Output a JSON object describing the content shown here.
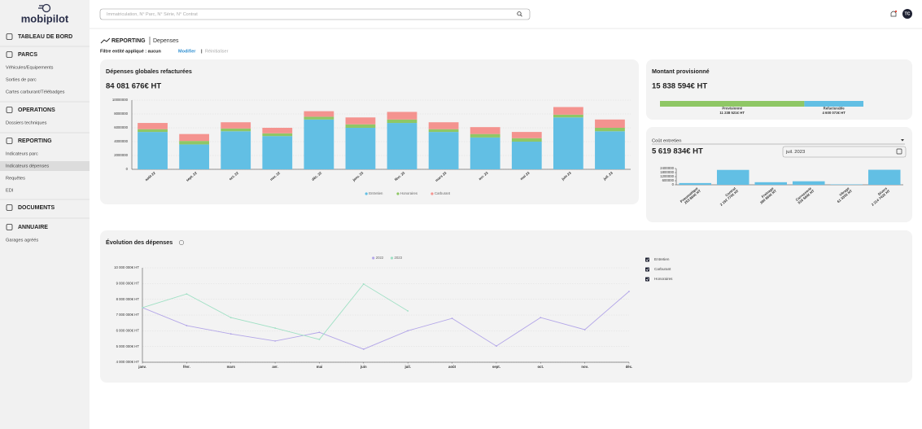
{
  "logo": "mobipilot",
  "search_placeholder": "Immatriculation, N° Parc, N° Série, N° Contrat",
  "avatar": "TC",
  "nav": [
    {
      "label": "TABLEAU DE BORD",
      "items": []
    },
    {
      "label": "PARCS",
      "items": [
        "Véhicules/Equipements",
        "Sorties de parc",
        "Cartes carburant/Télébadges"
      ]
    },
    {
      "label": "OPERATIONS",
      "items": [
        "Dossiers techniques"
      ]
    },
    {
      "label": "REPORTING",
      "items": [
        "Indicateurs parc",
        "Indicateurs dépenses",
        "Requêtes",
        "EDI"
      ]
    },
    {
      "label": "DOCUMENTS",
      "items": []
    },
    {
      "label": "ANNUAIRE",
      "items": [
        "Garages agréés"
      ]
    }
  ],
  "breadcrumb": {
    "section": "REPORTING",
    "page": "Depenses"
  },
  "filter": {
    "text": "Filtre entité appliqué : aucun",
    "modify": "Modifier",
    "separator": "|",
    "reset": "Réinitialiser"
  },
  "global_card": {
    "title": "Dépenses globales refacturées",
    "total": "84 081 676€ HT"
  },
  "provision_card": {
    "title": "Montant provisionné",
    "total": "15 838 594€ HT",
    "segments": [
      {
        "name": "Provisionné",
        "value": 11238521,
        "label": "11 238 521€ HT",
        "color": "#8fc765"
      },
      {
        "name": "Refacturable",
        "value": 4600073,
        "label": "4 600 073€ HT",
        "color": "#62bfe4"
      }
    ]
  },
  "cost_card": {
    "select": "Coût entretien",
    "total": "5 619 834€ HT",
    "date": "juil. 2023"
  },
  "evolution_card": {
    "title": "Évolution des dépenses",
    "filters": [
      "Entretien",
      "Carburant",
      "Honoraires"
    ]
  },
  "chart_data": [
    {
      "type": "bar",
      "stacked": true,
      "grid": true,
      "categories": [
        "août 22",
        "sept. 22",
        "oct. 22",
        "nov. 22",
        "déc. 22",
        "janv. 23",
        "févr. 23",
        "mars 23",
        "avr. 23",
        "mai 23",
        "juin 23",
        "juil. 23"
      ],
      "series": [
        {
          "name": "Entretien",
          "color": "#62bfe4",
          "values": [
            5400000,
            3600000,
            5500000,
            4800000,
            7200000,
            6000000,
            6700000,
            5400000,
            4600000,
            4000000,
            7500000,
            5500000
          ]
        },
        {
          "name": "Honoraires",
          "color": "#8fc765",
          "values": [
            400000,
            500000,
            400000,
            400000,
            400000,
            500000,
            500000,
            400000,
            500000,
            500000,
            400000,
            500000
          ]
        },
        {
          "name": "Carburant",
          "color": "#f4938f",
          "values": [
            900000,
            1000000,
            900000,
            800000,
            800000,
            1000000,
            1100000,
            1000000,
            1000000,
            900000,
            1100000,
            1200000
          ]
        }
      ],
      "ylim": [
        0,
        10000000
      ],
      "yticks": [
        0,
        2000000,
        4000000,
        6000000,
        8000000,
        10000000
      ]
    },
    {
      "type": "bar",
      "grid": false,
      "color": "#62bfe4",
      "categories": [
        "Pneumatique",
        "Contrat",
        "Freinage",
        "Carrosserie",
        "Vitrage",
        "Divers"
      ],
      "values": [
        253864,
        2192770,
        380864,
        516564,
        61030,
        2214742
      ],
      "value_labels": [
        "253 864€ HT",
        "2 192 770€ HT",
        "380 864€ HT",
        "516 564€ HT",
        "61 030€ HT",
        "2 214 742€ HT"
      ],
      "ylim": [
        0,
        2400000
      ],
      "yticks": [
        0,
        600000,
        1200000,
        1800000,
        2400000
      ]
    },
    {
      "type": "line",
      "grid": true,
      "categories": [
        "janv.",
        "févr.",
        "mars",
        "avr.",
        "mai",
        "juin",
        "juil.",
        "août",
        "sept.",
        "oct.",
        "nov.",
        "déc."
      ],
      "series": [
        {
          "name": "2022",
          "color": "#b3a6e8",
          "values": [
            7470000,
            6330000,
            5800000,
            5350000,
            5900000,
            4830000,
            6000000,
            6790000,
            5030000,
            6840000,
            6070000,
            8500000
          ]
        },
        {
          "name": "2023",
          "color": "#9fe0c4",
          "values": [
            7470000,
            8340000,
            6840000,
            6170000,
            5450000,
            8970000,
            7260000,
            null,
            null,
            null,
            null,
            null
          ]
        }
      ],
      "ylim": [
        4000000,
        10000000
      ],
      "yticks": [
        {
          "value": 4000000,
          "label": "4 000 000€ HT"
        },
        {
          "value": 5000000,
          "label": "5 000 000€ HT"
        },
        {
          "value": 6000000,
          "label": "6 000 000€ HT"
        },
        {
          "value": 7000000,
          "label": "7 000 000€ HT"
        },
        {
          "value": 8000000,
          "label": "8 000 000€ HT"
        },
        {
          "value": 9000000,
          "label": "9 000 000€ HT"
        },
        {
          "value": 10000000,
          "label": "10 000 000€ HT"
        }
      ]
    }
  ]
}
